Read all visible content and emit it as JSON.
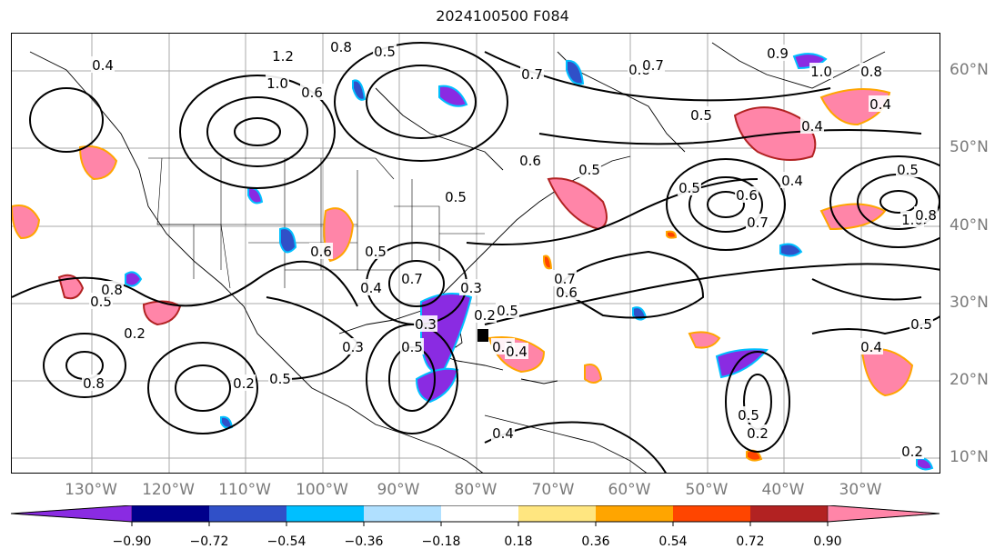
{
  "title": "2024100500 F084",
  "lat_labels": [
    "60°N",
    "50°N",
    "40°N",
    "30°N",
    "20°N",
    "10°N"
  ],
  "lon_labels": [
    "130°W",
    "120°W",
    "110°W",
    "100°W",
    "90°W",
    "80°W",
    "70°W",
    "60°W",
    "50°W",
    "40°W",
    "30°W"
  ],
  "colorbar": {
    "ticks": [
      "−0.90",
      "−0.72",
      "−0.54",
      "−0.36",
      "−0.18",
      "0.18",
      "0.36",
      "0.54",
      "0.72",
      "0.90"
    ],
    "colors": [
      "#8a2be2",
      "#00008b",
      "#3050c8",
      "#00bfff",
      "#b0e0ff",
      "#ffffff",
      "#ffe680",
      "#ffa500",
      "#ff4500",
      "#b22222",
      "#ff85a8"
    ]
  },
  "contour_labels": [
    "0.4",
    "1.2",
    "1.0",
    "0.8",
    "0.6",
    "0.5",
    "0.7",
    "0.8",
    "0.5",
    "0.4",
    "0.7",
    "0.9",
    "1.0",
    "0.8",
    "0.4",
    "0.5",
    "0.6",
    "0.7",
    "0.5",
    "0.4",
    "0.6",
    "0.5",
    "0.5",
    "0.7",
    "0.4",
    "1.0",
    "0.8",
    "0.5",
    "0.6",
    "0.5",
    "0.3",
    "0.7",
    "0.6",
    "0.3",
    "0.3",
    "0.5",
    "0.3",
    "0.2",
    "0.5",
    "0.8",
    "0.8",
    "0.2",
    "0.5",
    "0.4",
    "0.2",
    "0.5",
    "0.2",
    "0.4",
    "0.5",
    "0.2",
    "0.4"
  ],
  "shade_colors": {
    "pink": "#ff85a8",
    "red": "#b22222",
    "orange": "#ffa500",
    "purple": "#8a2be2",
    "blue": "#3050c8",
    "cyan": "#00bfff"
  }
}
